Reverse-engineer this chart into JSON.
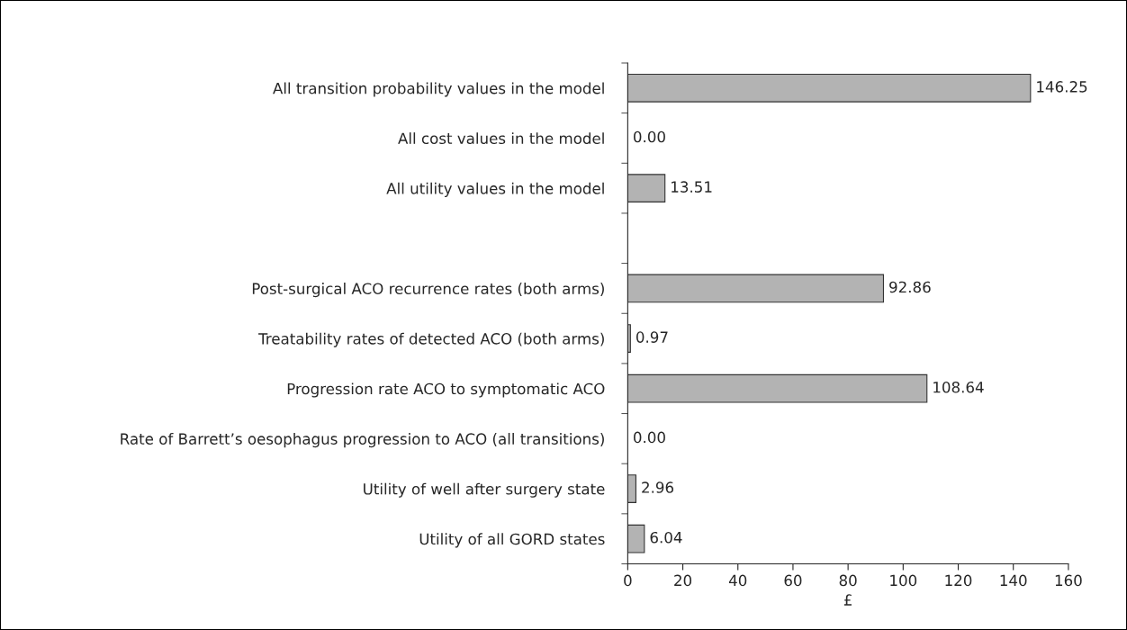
{
  "chart_data": {
    "type": "bar",
    "orientation": "horizontal",
    "xlabel": "£",
    "categories": [
      "All transition probability values in the model",
      "All cost values in the model",
      "All utility values in the model",
      null,
      "Post-surgical ACO recurrence rates (both arms)",
      "Treatability rates of detected ACO (both arms)",
      "Progression rate ACO to symptomatic ACO",
      "Rate of Barrett’s oesophagus progression to ACO (all transitions)",
      "Utility of well after surgery state",
      "Utility of all GORD states"
    ],
    "values": [
      146.25,
      0.0,
      13.51,
      null,
      92.86,
      0.97,
      108.64,
      0.0,
      2.96,
      6.04
    ],
    "value_labels": [
      "146.25",
      "0.00",
      "13.51",
      null,
      "92.86",
      "0.97",
      "108.64",
      "0.00",
      "2.96",
      "6.04"
    ],
    "color": "#b3b3b3",
    "xlim": [
      0,
      160
    ],
    "xticks": [
      0,
      20,
      40,
      60,
      80,
      100,
      120,
      140,
      160
    ],
    "grid": false
  }
}
